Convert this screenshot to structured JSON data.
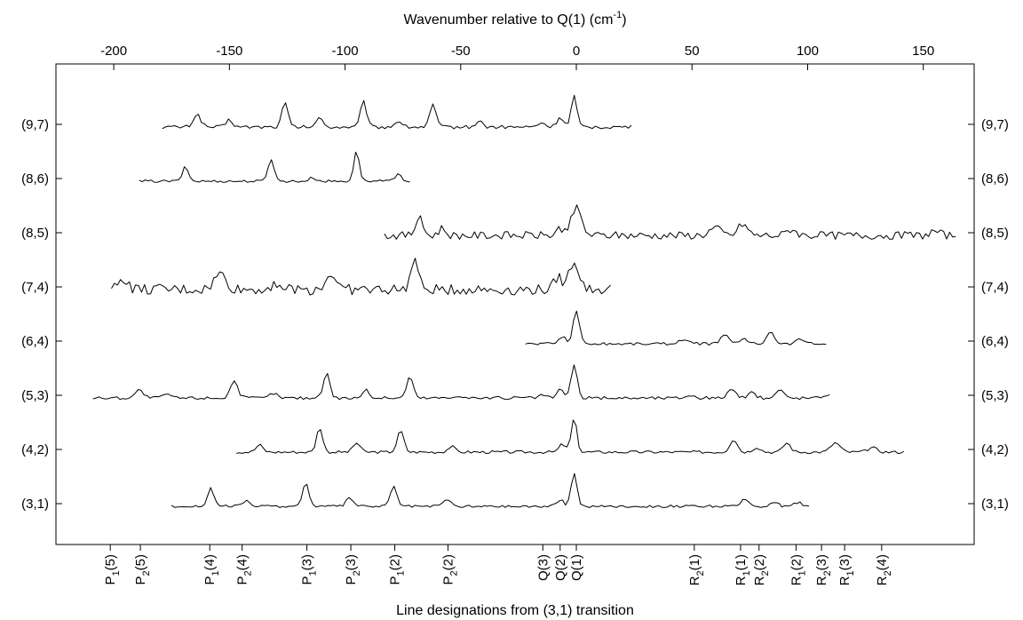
{
  "chart_data": {
    "type": "line",
    "title": "",
    "top_axis": {
      "label": "Wavenumber relative to Q(1) (cm",
      "label_sup": "-1",
      "label_suffix": ")",
      "ticks": [
        -200,
        -150,
        -100,
        -50,
        0,
        50,
        100,
        150
      ],
      "tick_labels": [
        "-200",
        "-150",
        "-100",
        "-50",
        "0",
        "50",
        "100",
        "150"
      ],
      "xlim": [
        -225,
        172
      ]
    },
    "bottom_axis": {
      "label": "Line designations from (3,1) transition",
      "ticks": [
        {
          "pos": -201.5,
          "main": "P",
          "sub": "1",
          "arg": "(5)"
        },
        {
          "pos": -188.5,
          "main": "P",
          "sub": "2",
          "arg": "(5)"
        },
        {
          "pos": -158.5,
          "main": "P",
          "sub": "1",
          "arg": "(4)"
        },
        {
          "pos": -144.5,
          "main": "P",
          "sub": "2",
          "arg": "(4)"
        },
        {
          "pos": -116.5,
          "main": "P",
          "sub": "1",
          "arg": "(3)"
        },
        {
          "pos": -97.5,
          "main": "P",
          "sub": "2",
          "arg": "(3)"
        },
        {
          "pos": -78.5,
          "main": "P",
          "sub": "1",
          "arg": "(2)"
        },
        {
          "pos": -55.5,
          "main": "P",
          "sub": "2",
          "arg": "(2)"
        },
        {
          "pos": -14.5,
          "main": "Q(3)",
          "sub": "",
          "arg": ""
        },
        {
          "pos": -7,
          "main": "Q(2)",
          "sub": "",
          "arg": ""
        },
        {
          "pos": 0,
          "main": "Q(1)",
          "sub": "",
          "arg": ""
        },
        {
          "pos": 51,
          "main": "R",
          "sub": "2",
          "arg": "(1)"
        },
        {
          "pos": 71,
          "main": "R",
          "sub": "1",
          "arg": "(1)"
        },
        {
          "pos": 79,
          "main": "R",
          "sub": "2",
          "arg": "(2)"
        },
        {
          "pos": 95,
          "main": "R",
          "sub": "1",
          "arg": "(2)"
        },
        {
          "pos": 106,
          "main": "R",
          "sub": "2",
          "arg": "(3)"
        },
        {
          "pos": 116,
          "main": "R",
          "sub": "1",
          "arg": "(3)"
        },
        {
          "pos": 132,
          "main": "R",
          "sub": "2",
          "arg": "(4)"
        }
      ]
    },
    "rows": [
      "(9,7)",
      "(8,6)",
      "(8,5)",
      "(7,4)",
      "(6,4)",
      "(5,3)",
      "(4,2)",
      "(3,1)"
    ],
    "grid": false,
    "legend": "none",
    "series": [
      {
        "name": "(9,7)",
        "x_range": [
          -179,
          25
        ],
        "noise": 2.5,
        "peaks": [
          [
            -164,
            18,
            1.6
          ],
          [
            -150,
            10,
            1.4
          ],
          [
            -126,
            34,
            1.3
          ],
          [
            -111,
            12,
            1.5
          ],
          [
            -92,
            36,
            1.3
          ],
          [
            -77,
            9,
            1.4
          ],
          [
            -62,
            32,
            1.3
          ],
          [
            -42,
            8,
            1.5
          ],
          [
            -15,
            6,
            1.5
          ],
          [
            -7,
            14,
            1.4
          ],
          [
            -1,
            43,
            1.2
          ]
        ]
      },
      {
        "name": "(8,6)",
        "x_range": [
          -189,
          -72
        ],
        "noise": 1.8,
        "peaks": [
          [
            -169,
            20,
            1.3
          ],
          [
            -132,
            32,
            1.3
          ],
          [
            -114,
            5,
            1.5
          ],
          [
            -95,
            42,
            1.2
          ],
          [
            -77,
            12,
            1.3
          ]
        ]
      },
      {
        "name": "(8,5)",
        "x_range": [
          -83,
          165
        ],
        "noise": 5.5,
        "peaks": [
          [
            -68,
            24,
            1.6
          ],
          [
            -58,
            10,
            1.5
          ],
          [
            -7,
            10,
            1.5
          ],
          [
            0,
            38,
            2.2
          ],
          [
            60,
            10,
            2.5
          ],
          [
            72,
            16,
            2.0
          ],
          [
            93,
            9,
            2.0
          ],
          [
            155,
            6,
            2.0
          ]
        ]
      },
      {
        "name": "(7,4)",
        "x_range": [
          -201,
          16
        ],
        "noise": 7.5,
        "peaks": [
          [
            -196,
            16,
            2.0
          ],
          [
            -154,
            22,
            2.5
          ],
          [
            -130,
            10,
            2.0
          ],
          [
            -106,
            22,
            2.2
          ],
          [
            -70,
            42,
            1.6
          ],
          [
            -8,
            18,
            1.5
          ],
          [
            -1,
            40,
            2.2
          ]
        ]
      },
      {
        "name": "(6,4)",
        "x_range": [
          -22,
          109
        ],
        "noise": 2.0,
        "peaks": [
          [
            -6,
            10,
            1.6
          ],
          [
            0,
            48,
            1.3
          ],
          [
            46,
            6,
            2.0
          ],
          [
            64,
            13,
            1.6
          ],
          [
            72,
            7,
            1.8
          ],
          [
            84,
            18,
            1.6
          ],
          [
            97,
            7,
            1.8
          ]
        ]
      },
      {
        "name": "(5,3)",
        "x_range": [
          -209,
          110
        ],
        "noise": 2.2,
        "peaks": [
          [
            -189,
            11,
            1.8
          ],
          [
            -177,
            6,
            1.5
          ],
          [
            -148,
            24,
            1.6
          ],
          [
            -131,
            7,
            1.5
          ],
          [
            -108,
            35,
            1.4
          ],
          [
            -91,
            11,
            1.5
          ],
          [
            -72,
            30,
            1.4
          ],
          [
            -51,
            4,
            1.5
          ],
          [
            -15,
            4,
            1.5
          ],
          [
            -7,
            12,
            1.4
          ],
          [
            -1,
            46,
            1.3
          ],
          [
            49,
            4,
            1.8
          ],
          [
            67,
            13,
            1.6
          ],
          [
            76,
            7,
            1.6
          ],
          [
            88,
            12,
            1.6
          ],
          [
            108,
            5,
            1.6
          ]
        ]
      },
      {
        "name": "(4,2)",
        "x_range": [
          -147,
          142
        ],
        "noise": 2.0,
        "peaks": [
          [
            -137,
            10,
            1.5
          ],
          [
            -111,
            35,
            1.3
          ],
          [
            -95,
            13,
            1.5
          ],
          [
            -76,
            30,
            1.4
          ],
          [
            -54,
            8,
            1.5
          ],
          [
            -6,
            11,
            1.4
          ],
          [
            -1,
            47,
            1.2
          ],
          [
            68,
            18,
            1.6
          ],
          [
            78,
            7,
            1.6
          ],
          [
            91,
            13,
            1.6
          ],
          [
            112,
            13,
            2.0
          ],
          [
            128,
            6,
            2.0
          ]
        ]
      },
      {
        "name": "(3,1)",
        "x_range": [
          -175,
          101
        ],
        "noise": 1.8,
        "peaks": [
          [
            -158,
            25,
            1.4
          ],
          [
            -143,
            8,
            1.5
          ],
          [
            -117,
            32,
            1.4
          ],
          [
            -98,
            12,
            1.5
          ],
          [
            -79,
            28,
            1.4
          ],
          [
            -56,
            10,
            1.6
          ],
          [
            -7,
            9,
            1.5
          ],
          [
            -1,
            46,
            1.3
          ],
          [
            73,
            10,
            1.6
          ],
          [
            86,
            7,
            1.4
          ],
          [
            96,
            6,
            1.6
          ]
        ]
      }
    ]
  }
}
